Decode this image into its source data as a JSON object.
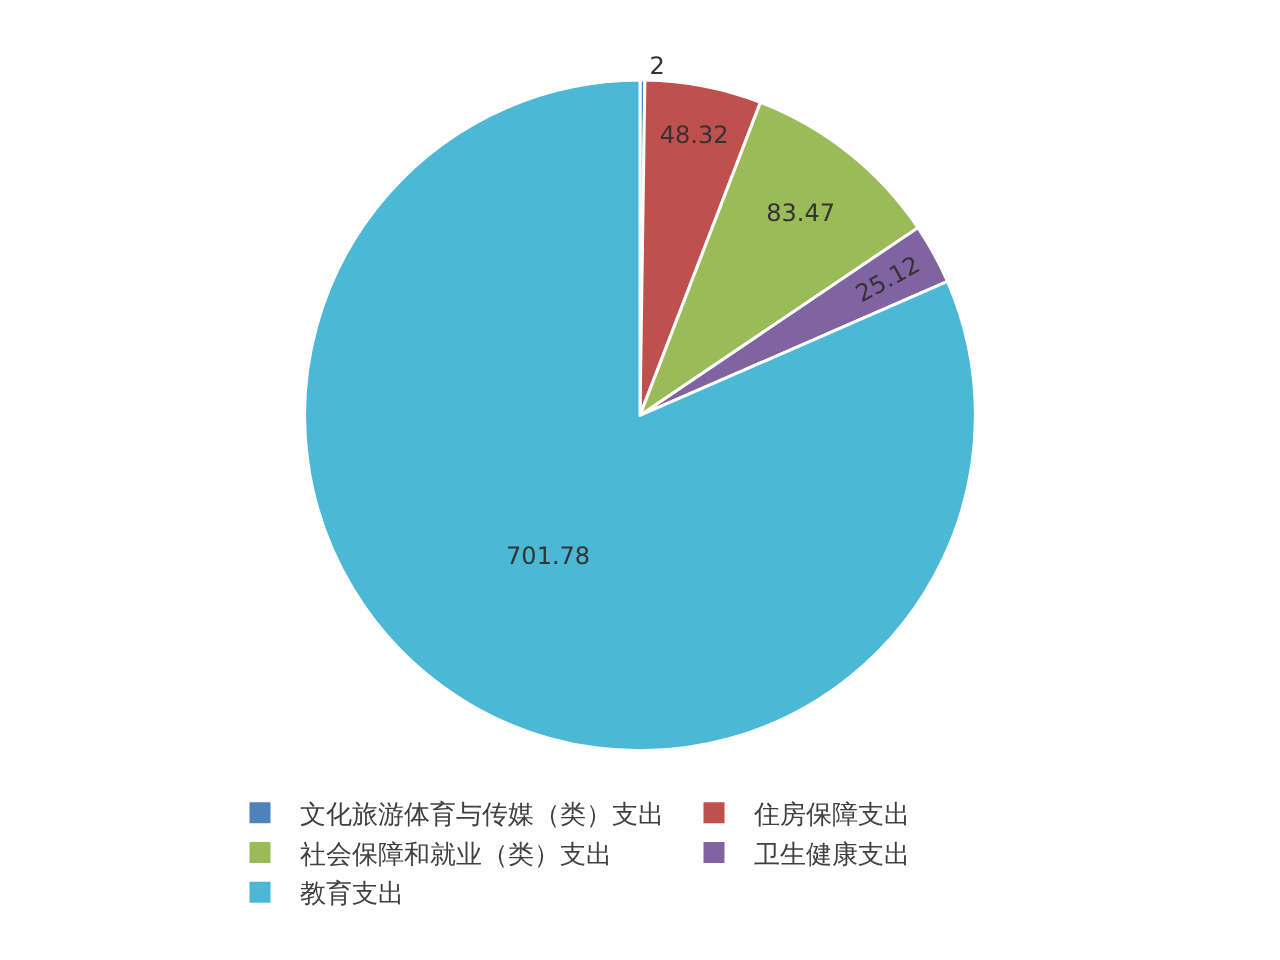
{
  "chart_data": {
    "type": "pie",
    "categories": [
      "文化旅游体育与传媒（类）支出",
      "住房保障支出",
      "社会保障和就业（类）支出",
      "卫生健康支出",
      "教育支出"
    ],
    "values": [
      2,
      48.32,
      83.47,
      25.12,
      701.78
    ],
    "colors": [
      "#4f81bd",
      "#c0504d",
      "#9bbb59",
      "#8064a2",
      "#4bb8d6"
    ],
    "data_labels": true,
    "legend": "bottom"
  }
}
